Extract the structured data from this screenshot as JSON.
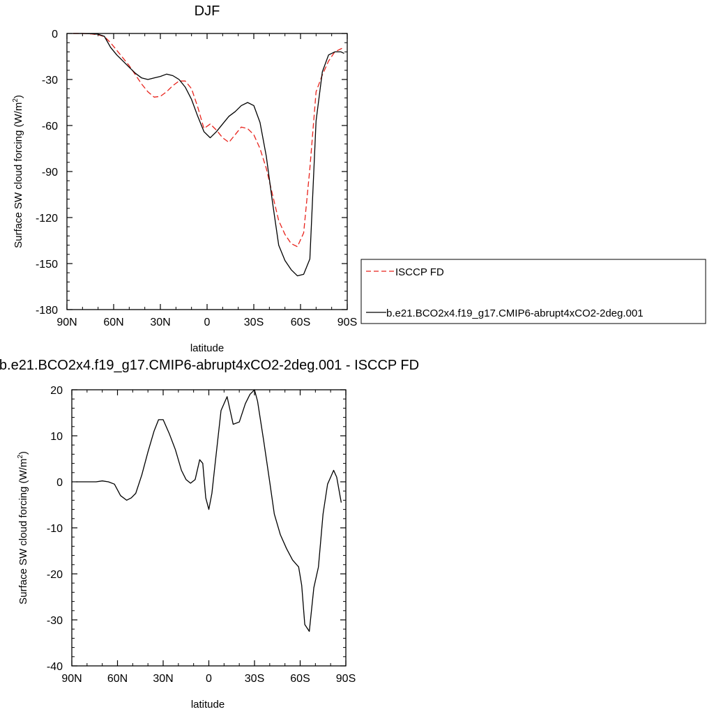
{
  "chart_data": [
    {
      "type": "line",
      "title": "DJF",
      "xlabel": "latitude",
      "ylabel_main": "Surface SW cloud forcing (W/m",
      "ylabel_sup": "2",
      "ylabel_tail": ")",
      "xlim": [
        90,
        -90
      ],
      "ylim": [
        -180,
        0
      ],
      "xticks": [
        {
          "value": 90,
          "label": "90N"
        },
        {
          "value": 60,
          "label": "60N"
        },
        {
          "value": 30,
          "label": "30N"
        },
        {
          "value": 0,
          "label": "0"
        },
        {
          "value": -30,
          "label": "30S"
        },
        {
          "value": -60,
          "label": "60S"
        },
        {
          "value": -90,
          "label": "90S"
        }
      ],
      "yticks": [
        0,
        -30,
        -60,
        -90,
        -120,
        -150,
        -180
      ],
      "legend_position": "right",
      "series": [
        {
          "name": "ISCCP FD",
          "color": "#e8221b",
          "dash": "dashed",
          "x": [
            86,
            80,
            74,
            70,
            66,
            62,
            58,
            54,
            50,
            46,
            42,
            38,
            34,
            30,
            26,
            22,
            18,
            14,
            10,
            6,
            2,
            -2,
            -6,
            -10,
            -14,
            -18,
            -22,
            -26,
            -30,
            -34,
            -38,
            -42,
            -46,
            -50,
            -54,
            -58,
            -62,
            -66,
            -70,
            -74,
            -78,
            -82,
            -86,
            -88
          ],
          "y": [
            0,
            0,
            -0.3,
            -0.8,
            -2,
            -6,
            -11,
            -16,
            -21,
            -27,
            -33,
            -38,
            -41.5,
            -41,
            -38,
            -34,
            -31,
            -31,
            -36,
            -48,
            -62,
            -59,
            -63,
            -68,
            -71,
            -66,
            -61,
            -62,
            -66,
            -75,
            -88,
            -105,
            -122,
            -131,
            -137,
            -139,
            -130,
            -88,
            -38,
            -27,
            -18,
            -12,
            -10,
            -9
          ]
        },
        {
          "name": "b.e21.BCO2x4.f19_g17.CMIP6-abrupt4xCO2-2deg.001",
          "color": "#000000",
          "dash": "solid",
          "x": [
            86,
            80,
            74,
            70,
            66,
            62,
            58,
            54,
            50,
            46,
            42,
            38,
            34,
            30,
            26,
            22,
            18,
            14,
            10,
            6,
            2,
            -2,
            -6,
            -10,
            -14,
            -18,
            -22,
            -26,
            -30,
            -34,
            -38,
            -42,
            -46,
            -50,
            -54,
            -58,
            -62,
            -66,
            -70,
            -74,
            -78,
            -82,
            -86,
            -88
          ],
          "y": [
            0,
            0,
            -0.2,
            -0.5,
            -1.8,
            -9,
            -14,
            -18,
            -22,
            -26,
            -29,
            -30,
            -29,
            -28,
            -26.5,
            -27.5,
            -30,
            -35,
            -43,
            -54,
            -64,
            -68,
            -64,
            -59,
            -54,
            -51,
            -47,
            -45,
            -47,
            -58,
            -80,
            -110,
            -138,
            -148,
            -154,
            -158,
            -157,
            -147,
            -57,
            -25,
            -14,
            -12,
            -12,
            -13
          ]
        }
      ]
    },
    {
      "type": "line",
      "title": "b.e21.BCO2x4.f19_g17.CMIP6-abrupt4xCO2-2deg.001 - ISCCP FD",
      "xlabel": "latitude",
      "ylabel_main": "Surface SW cloud forcing (W/m",
      "ylabel_sup": "2",
      "ylabel_tail": ")",
      "xlim": [
        90,
        -90
      ],
      "ylim": [
        -40,
        20
      ],
      "xticks": [
        {
          "value": 90,
          "label": "90N"
        },
        {
          "value": 60,
          "label": "60N"
        },
        {
          "value": 30,
          "label": "30N"
        },
        {
          "value": 0,
          "label": "0"
        },
        {
          "value": -30,
          "label": "30S"
        },
        {
          "value": -60,
          "label": "60S"
        },
        {
          "value": -90,
          "label": "90S"
        }
      ],
      "yticks": [
        20,
        10,
        0,
        -10,
        -20,
        -30,
        -40
      ],
      "series": [
        {
          "color": "#000000",
          "dash": "solid",
          "x": [
            87,
            80,
            74,
            70,
            66,
            62,
            58,
            54,
            51,
            48,
            44,
            40,
            36,
            33,
            30,
            26,
            22,
            18,
            15,
            12,
            9,
            6,
            4,
            2,
            0,
            -2,
            -4,
            -8,
            -12,
            -16,
            -20,
            -24,
            -27,
            -30,
            -32,
            -36,
            -40,
            -43,
            -47,
            -51,
            -55,
            -59,
            -61,
            -63,
            -66,
            -69,
            -72,
            -75,
            -78,
            -80,
            -82,
            -84,
            -87
          ],
          "y": [
            0,
            0,
            0,
            0.2,
            0,
            -0.5,
            -3,
            -4,
            -3.5,
            -2.5,
            1.5,
            6.5,
            11,
            13.5,
            13.5,
            10.5,
            7,
            2.5,
            0.5,
            -0.3,
            0.5,
            4.8,
            4,
            -3.5,
            -6,
            -2.5,
            3.5,
            15.5,
            18.5,
            12.5,
            13,
            17,
            19,
            20,
            17.5,
            9,
            0,
            -7,
            -11.5,
            -14.5,
            -17,
            -18.5,
            -22.5,
            -31,
            -32.5,
            -23,
            -18.5,
            -7,
            -0.5,
            1,
            2.5,
            1,
            -4.5
          ]
        }
      ]
    }
  ]
}
